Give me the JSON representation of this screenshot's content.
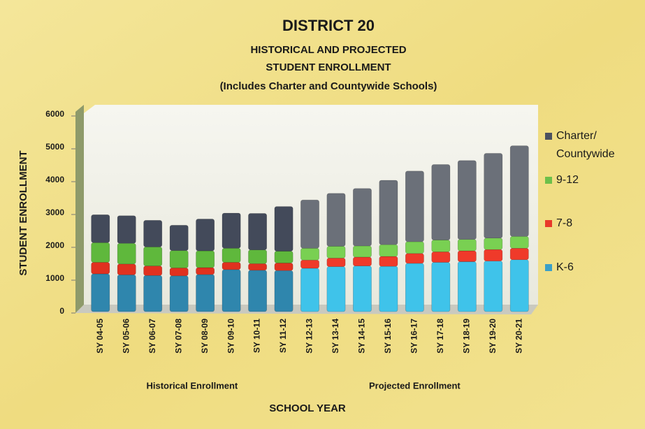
{
  "chart_data": {
    "type": "stacked_bar",
    "title": "DISTRICT 20",
    "subtitle": [
      "HISTORICAL AND PROJECTED",
      "STUDENT ENROLLMENT",
      "(Includes Charter and Countywide Schools)"
    ],
    "x_label": "SCHOOL YEAR",
    "y_label": "STUDENT ENROLLMENT",
    "groups": [
      {
        "label": "Historical Enrollment",
        "categories": [
          "SY 04-05",
          "SY 05-06",
          "SY 06-07",
          "SY 07-08",
          "SY 08-09",
          "SY 09-10",
          "SY 10-11",
          "SY 11-12"
        ],
        "colors": [
          "#2f86ad",
          "#e0311f",
          "#5fb83c",
          "#434a5a"
        ]
      },
      {
        "label": "Projected Enrollment",
        "categories": [
          "SY 12-13",
          "SY 13-14",
          "SY 14-15",
          "SY 15-16",
          "SY 16-17",
          "SY 17-18",
          "SY 18-19",
          "SY 19-20",
          "SY 20-21"
        ],
        "colors": [
          "#3fc3ea",
          "#ef3a2a",
          "#79d052",
          "#6b7079"
        ]
      }
    ],
    "series": [
      {
        "name": "K-6",
        "color": "#3aa0c8",
        "values": [
          1150,
          1120,
          1100,
          1090,
          1130,
          1280,
          1260,
          1250,
          1320,
          1370,
          1390,
          1380,
          1470,
          1500,
          1520,
          1540,
          1580
        ]
      },
      {
        "name": "7-8",
        "color": "#e8392a",
        "values": [
          350,
          330,
          290,
          240,
          210,
          220,
          200,
          230,
          250,
          260,
          270,
          300,
          300,
          320,
          330,
          350,
          350
        ]
      },
      {
        "name": "9-12",
        "color": "#6cc04a",
        "values": [
          600,
          630,
          580,
          530,
          510,
          430,
          420,
          360,
          360,
          360,
          340,
          360,
          360,
          360,
          350,
          350,
          360
        ]
      },
      {
        "name": [
          "Charter/",
          "Countywide"
        ],
        "color": "#4a5060",
        "values": [
          850,
          840,
          810,
          770,
          970,
          1070,
          1110,
          1360,
          1470,
          1610,
          1750,
          1960,
          2150,
          2300,
          2400,
          2580,
          2760
        ]
      }
    ],
    "ylim": [
      0,
      6000
    ],
    "yticks": [
      0,
      1000,
      2000,
      3000,
      4000,
      5000,
      6000
    ],
    "legend": "right"
  }
}
